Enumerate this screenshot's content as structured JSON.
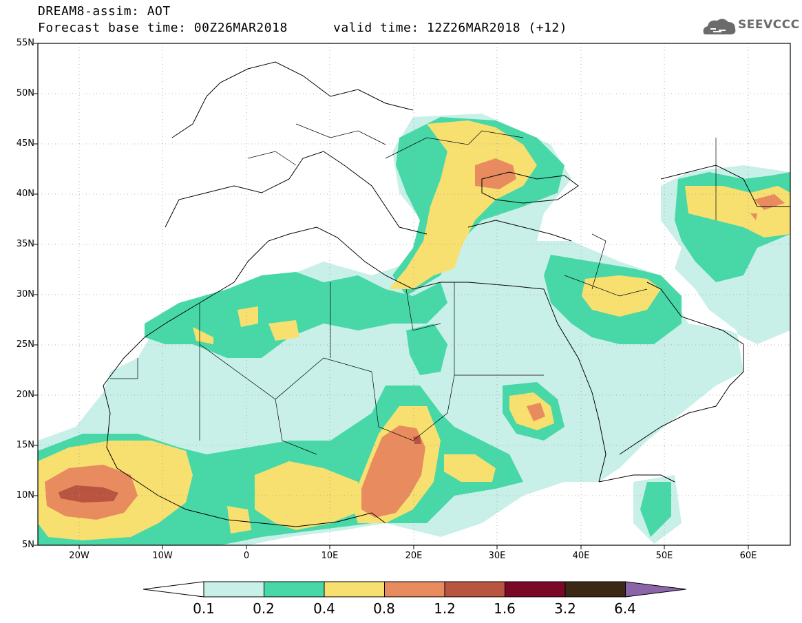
{
  "header": {
    "title_line1": "DREAM8-assim: AOT",
    "title_line2": "Forecast base time: 00Z26MAR2018",
    "title_line3": "valid time: 12Z26MAR2018 (+12)",
    "logo_text": "SEEVCCC"
  },
  "map": {
    "region": {
      "lon_range": [
        -25,
        65
      ],
      "lat_range": [
        5,
        55
      ]
    },
    "lat_labels": [
      "55N",
      "50N",
      "45N",
      "40N",
      "35N",
      "30N",
      "25N",
      "20N",
      "15N",
      "10N",
      "5N"
    ],
    "lon_labels": [
      "20W",
      "10W",
      "0",
      "10E",
      "20E",
      "30E",
      "40E",
      "50E",
      "60E"
    ],
    "grid": true
  },
  "legend": {
    "variable": "AOT",
    "levels": [
      "0.1",
      "0.2",
      "0.4",
      "0.8",
      "1.2",
      "1.6",
      "3.2",
      "6.4"
    ],
    "colors": [
      "#c8f0e8",
      "#48d8a8",
      "#f8e070",
      "#e88c60",
      "#b85440",
      "#7c0828",
      "#3c2814",
      "#8c64a8"
    ]
  }
}
